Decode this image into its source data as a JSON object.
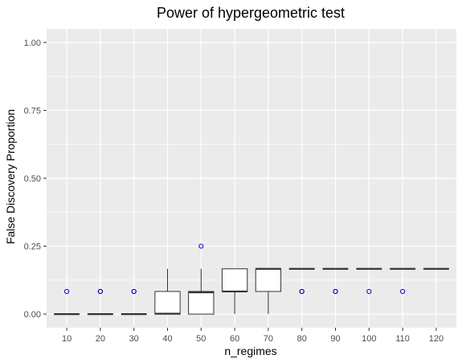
{
  "chart_data": {
    "type": "boxplot",
    "title": "Power of hypergeometric test",
    "xlabel": "n_regimes",
    "ylabel": "False Discovery Proportion",
    "ylim": [
      0,
      1
    ],
    "yticks": [
      "0.00",
      "0.25",
      "0.50",
      "0.75",
      "1.00"
    ],
    "ytick_values": [
      0,
      0.25,
      0.5,
      0.75,
      1.0
    ],
    "categories": [
      "10",
      "20",
      "30",
      "40",
      "50",
      "60",
      "70",
      "80",
      "90",
      "100",
      "110",
      "120"
    ],
    "grid": true,
    "outlier_color": "#0000cc",
    "panel_color": "#ebebeb",
    "boxes": [
      {
        "q1": 0,
        "median": 0,
        "q3": 0,
        "wlo": 0,
        "whi": 0,
        "outliers": [
          0.0833
        ]
      },
      {
        "q1": 0,
        "median": 0,
        "q3": 0,
        "wlo": 0,
        "whi": 0,
        "outliers": [
          0.0833,
          0.0833
        ]
      },
      {
        "q1": 0,
        "median": 0,
        "q3": 0,
        "wlo": 0,
        "whi": 0,
        "outliers": [
          0.0833,
          0.0833
        ]
      },
      {
        "q1": 0,
        "median": 0.0013,
        "q3": 0.0833,
        "wlo": 0,
        "whi": 0.1667,
        "outliers": []
      },
      {
        "q1": 0,
        "median": 0.08,
        "q3": 0.0833,
        "wlo": 0,
        "whi": 0.1667,
        "outliers": [
          0.25
        ]
      },
      {
        "q1": 0.0833,
        "median": 0.0833,
        "q3": 0.1667,
        "wlo": 0,
        "whi": 0.1667,
        "outliers": []
      },
      {
        "q1": 0.0833,
        "median": 0.1667,
        "q3": 0.1667,
        "wlo": 0,
        "whi": 0.1667,
        "outliers": []
      },
      {
        "q1": 0.1667,
        "median": 0.1667,
        "q3": 0.1667,
        "wlo": 0.1667,
        "whi": 0.1667,
        "outliers": [
          0.0833,
          0.0833
        ]
      },
      {
        "q1": 0.1667,
        "median": 0.1667,
        "q3": 0.1667,
        "wlo": 0.1667,
        "whi": 0.1667,
        "outliers": [
          0.0833,
          0.0833
        ]
      },
      {
        "q1": 0.1667,
        "median": 0.1667,
        "q3": 0.1667,
        "wlo": 0.1667,
        "whi": 0.1667,
        "outliers": [
          0.0833
        ]
      },
      {
        "q1": 0.1667,
        "median": 0.1667,
        "q3": 0.1667,
        "wlo": 0.1667,
        "whi": 0.1667,
        "outliers": [
          0.0833
        ]
      },
      {
        "q1": 0.1667,
        "median": 0.1667,
        "q3": 0.1667,
        "wlo": 0.1667,
        "whi": 0.1667,
        "outliers": []
      }
    ]
  }
}
